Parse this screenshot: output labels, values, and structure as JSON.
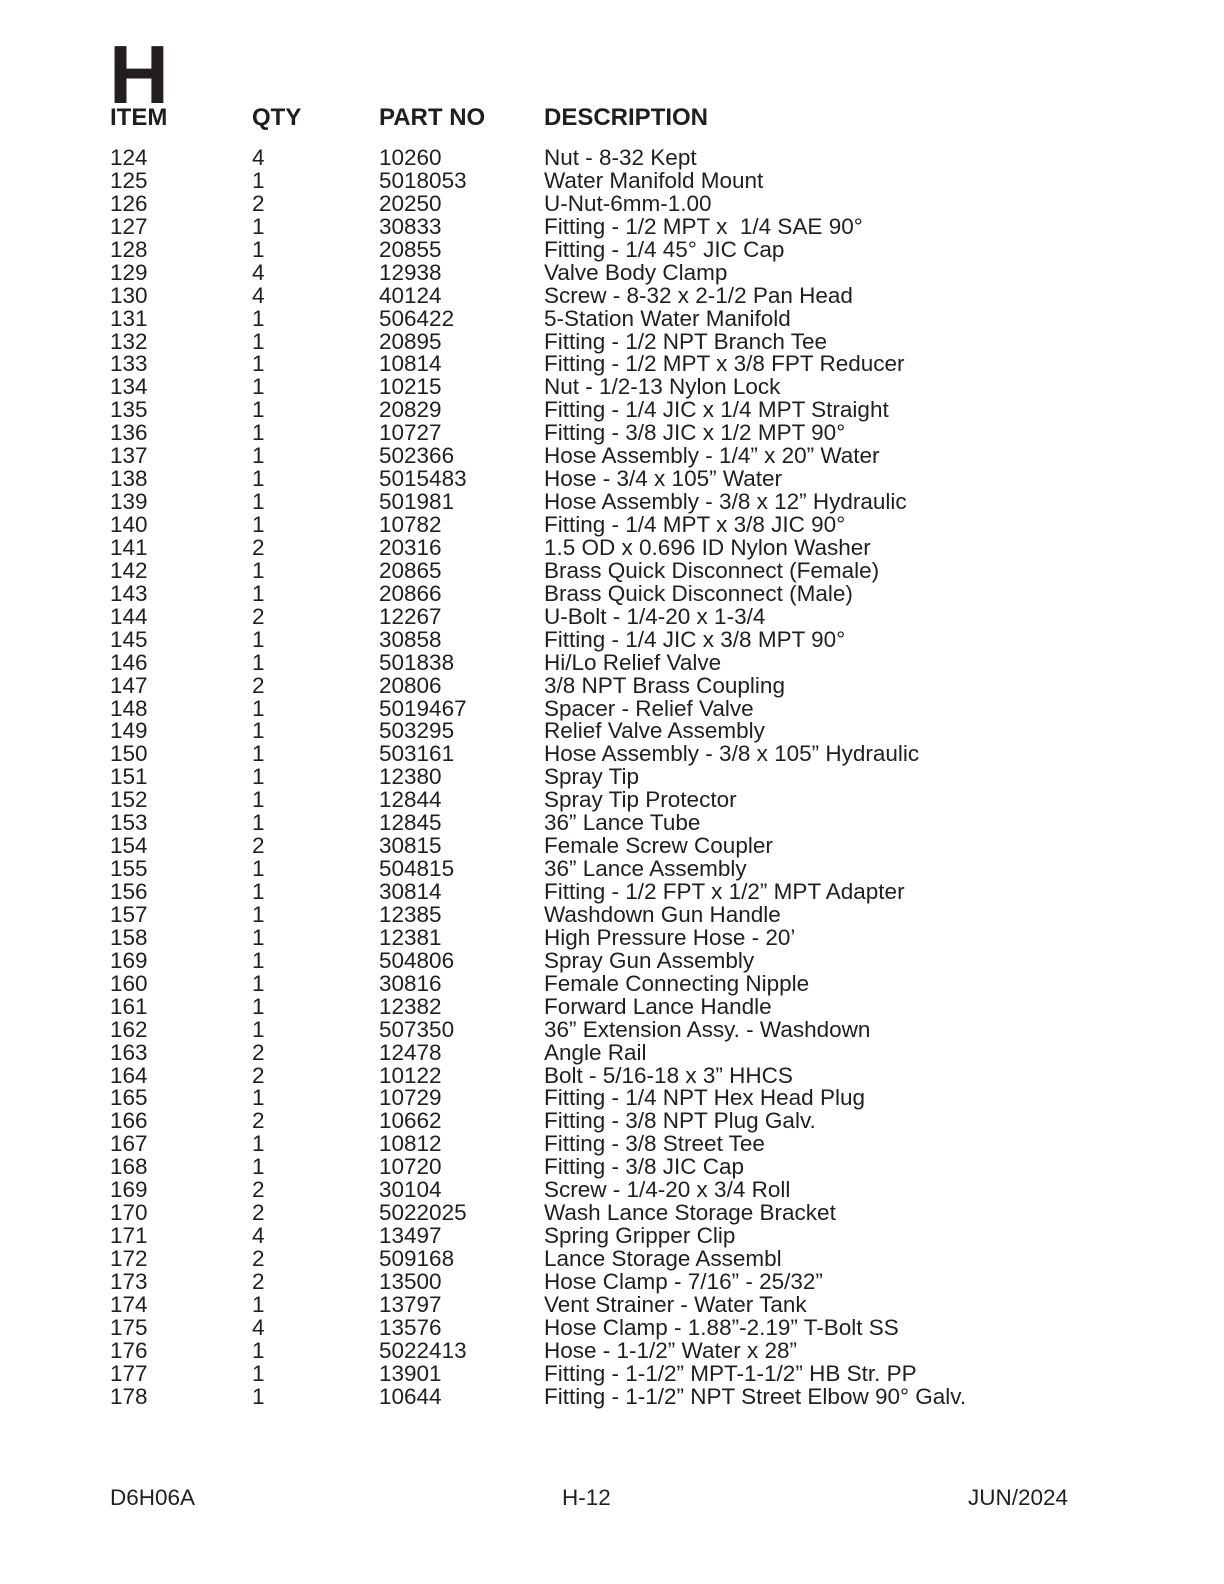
{
  "page": {
    "section_letter": "H",
    "footer": {
      "doc_code": "D6H06A",
      "page_number": "H-12",
      "date": "JUN/2024"
    }
  },
  "table": {
    "headers": {
      "item": "ITEM",
      "qty": "QTY",
      "part_no": "PART NO",
      "description": "DESCRIPTION"
    },
    "rows": [
      {
        "item": "124",
        "qty": "4",
        "part_no": "10260",
        "description": "Nut - 8-32 Kept"
      },
      {
        "item": "125",
        "qty": "1",
        "part_no": "5018053",
        "description": "Water Manifold Mount"
      },
      {
        "item": "126",
        "qty": "2",
        "part_no": "20250",
        "description": "U-Nut-6mm-1.00"
      },
      {
        "item": "127",
        "qty": "1",
        "part_no": "30833",
        "description": "Fitting - 1/2 MPT x  1/4 SAE 90°"
      },
      {
        "item": "128",
        "qty": "1",
        "part_no": "20855",
        "description": "Fitting - 1/4 45° JIC Cap"
      },
      {
        "item": "129",
        "qty": "4",
        "part_no": "12938",
        "description": "Valve Body Clamp"
      },
      {
        "item": "130",
        "qty": "4",
        "part_no": "40124",
        "description": "Screw - 8-32 x 2-1/2 Pan Head"
      },
      {
        "item": "131",
        "qty": "1",
        "part_no": "506422",
        "description": "5-Station Water Manifold"
      },
      {
        "item": "132",
        "qty": "1",
        "part_no": "20895",
        "description": "Fitting - 1/2 NPT Branch Tee"
      },
      {
        "item": "133",
        "qty": "1",
        "part_no": "10814",
        "description": "Fitting - 1/2 MPT x 3/8 FPT Reducer"
      },
      {
        "item": "134",
        "qty": "1",
        "part_no": "10215",
        "description": "Nut - 1/2-13 Nylon Lock"
      },
      {
        "item": "135",
        "qty": "1",
        "part_no": "20829",
        "description": "Fitting - 1/4 JIC x 1/4 MPT Straight"
      },
      {
        "item": "136",
        "qty": "1",
        "part_no": "10727",
        "description": "Fitting - 3/8 JIC x 1/2 MPT 90°"
      },
      {
        "item": "137",
        "qty": "1",
        "part_no": "502366",
        "description": "Hose Assembly - 1/4” x 20” Water"
      },
      {
        "item": "138",
        "qty": "1",
        "part_no": "5015483",
        "description": "Hose - 3/4 x 105” Water"
      },
      {
        "item": "139",
        "qty": "1",
        "part_no": "501981",
        "description": "Hose Assembly - 3/8 x 12” Hydraulic"
      },
      {
        "item": "140",
        "qty": "1",
        "part_no": "10782",
        "description": "Fitting - 1/4 MPT x 3/8 JIC 90°"
      },
      {
        "item": "141",
        "qty": "2",
        "part_no": "20316",
        "description": "1.5 OD x 0.696 ID Nylon Washer"
      },
      {
        "item": "142",
        "qty": "1",
        "part_no": "20865",
        "description": "Brass Quick Disconnect (Female)"
      },
      {
        "item": "143",
        "qty": "1",
        "part_no": "20866",
        "description": "Brass Quick Disconnect (Male)"
      },
      {
        "item": "144",
        "qty": "2",
        "part_no": "12267",
        "description": "U-Bolt - 1/4-20 x 1-3/4"
      },
      {
        "item": "145",
        "qty": "1",
        "part_no": "30858",
        "description": "Fitting - 1/4 JIC x 3/8 MPT 90°"
      },
      {
        "item": "146",
        "qty": "1",
        "part_no": "501838",
        "description": "Hi/Lo Relief Valve"
      },
      {
        "item": "147",
        "qty": "2",
        "part_no": "20806",
        "description": "3/8 NPT Brass Coupling"
      },
      {
        "item": "148",
        "qty": "1",
        "part_no": "5019467",
        "description": "Spacer - Relief Valve"
      },
      {
        "item": "149",
        "qty": "1",
        "part_no": "503295",
        "description": "Relief Valve Assembly"
      },
      {
        "item": "150",
        "qty": "1",
        "part_no": "503161",
        "description": "Hose Assembly - 3/8 x 105” Hydraulic"
      },
      {
        "item": "151",
        "qty": "1",
        "part_no": "12380",
        "description": "Spray Tip"
      },
      {
        "item": "152",
        "qty": "1",
        "part_no": "12844",
        "description": "Spray Tip Protector"
      },
      {
        "item": "153",
        "qty": "1",
        "part_no": "12845",
        "description": "36” Lance Tube"
      },
      {
        "item": "154",
        "qty": "2",
        "part_no": "30815",
        "description": "Female Screw Coupler"
      },
      {
        "item": "155",
        "qty": "1",
        "part_no": "504815",
        "description": "36” Lance Assembly"
      },
      {
        "item": "156",
        "qty": "1",
        "part_no": "30814",
        "description": "Fitting - 1/2 FPT x 1/2” MPT Adapter"
      },
      {
        "item": "157",
        "qty": "1",
        "part_no": "12385",
        "description": "Washdown Gun Handle"
      },
      {
        "item": "158",
        "qty": "1",
        "part_no": "12381",
        "description": "High Pressure Hose - 20’"
      },
      {
        "item": "169",
        "qty": "1",
        "part_no": "504806",
        "description": "Spray Gun Assembly"
      },
      {
        "item": "160",
        "qty": "1",
        "part_no": "30816",
        "description": "Female Connecting Nipple"
      },
      {
        "item": "161",
        "qty": "1",
        "part_no": "12382",
        "description": "Forward Lance Handle"
      },
      {
        "item": "162",
        "qty": "1",
        "part_no": "507350",
        "description": "36” Extension Assy. - Washdown"
      },
      {
        "item": "163",
        "qty": "2",
        "part_no": "12478",
        "description": "Angle Rail"
      },
      {
        "item": "164",
        "qty": "2",
        "part_no": "10122",
        "description": "Bolt - 5/16-18 x 3” HHCS"
      },
      {
        "item": "165",
        "qty": "1",
        "part_no": "10729",
        "description": "Fitting - 1/4 NPT Hex Head Plug"
      },
      {
        "item": "166",
        "qty": "2",
        "part_no": "10662",
        "description": "Fitting - 3/8 NPT Plug Galv."
      },
      {
        "item": "167",
        "qty": "1",
        "part_no": "10812",
        "description": "Fitting - 3/8 Street Tee"
      },
      {
        "item": "168",
        "qty": "1",
        "part_no": "10720",
        "description": "Fitting - 3/8 JIC Cap"
      },
      {
        "item": "169",
        "qty": "2",
        "part_no": "30104",
        "description": "Screw - 1/4-20 x 3/4 Roll"
      },
      {
        "item": "170",
        "qty": "2",
        "part_no": "5022025",
        "description": "Wash Lance Storage Bracket"
      },
      {
        "item": "171",
        "qty": "4",
        "part_no": "13497",
        "description": "Spring Gripper Clip"
      },
      {
        "item": "172",
        "qty": "2",
        "part_no": "509168",
        "description": "Lance Storage Assembl"
      },
      {
        "item": "173",
        "qty": "2",
        "part_no": "13500",
        "description": "Hose Clamp - 7/16” - 25/32”"
      },
      {
        "item": "174",
        "qty": "1",
        "part_no": "13797",
        "description": "Vent Strainer - Water Tank"
      },
      {
        "item": "175",
        "qty": "4",
        "part_no": "13576",
        "description": "Hose Clamp - 1.88”-2.19” T-Bolt SS"
      },
      {
        "item": "176",
        "qty": "1",
        "part_no": "5022413",
        "description": "Hose - 1-1/2” Water x 28”"
      },
      {
        "item": "177",
        "qty": "1",
        "part_no": "13901",
        "description": "Fitting - 1-1/2” MPT-1-1/2” HB Str. PP"
      },
      {
        "item": "178",
        "qty": "1",
        "part_no": "10644",
        "description": "Fitting - 1-1/2” NPT Street Elbow 90° Galv."
      }
    ]
  }
}
